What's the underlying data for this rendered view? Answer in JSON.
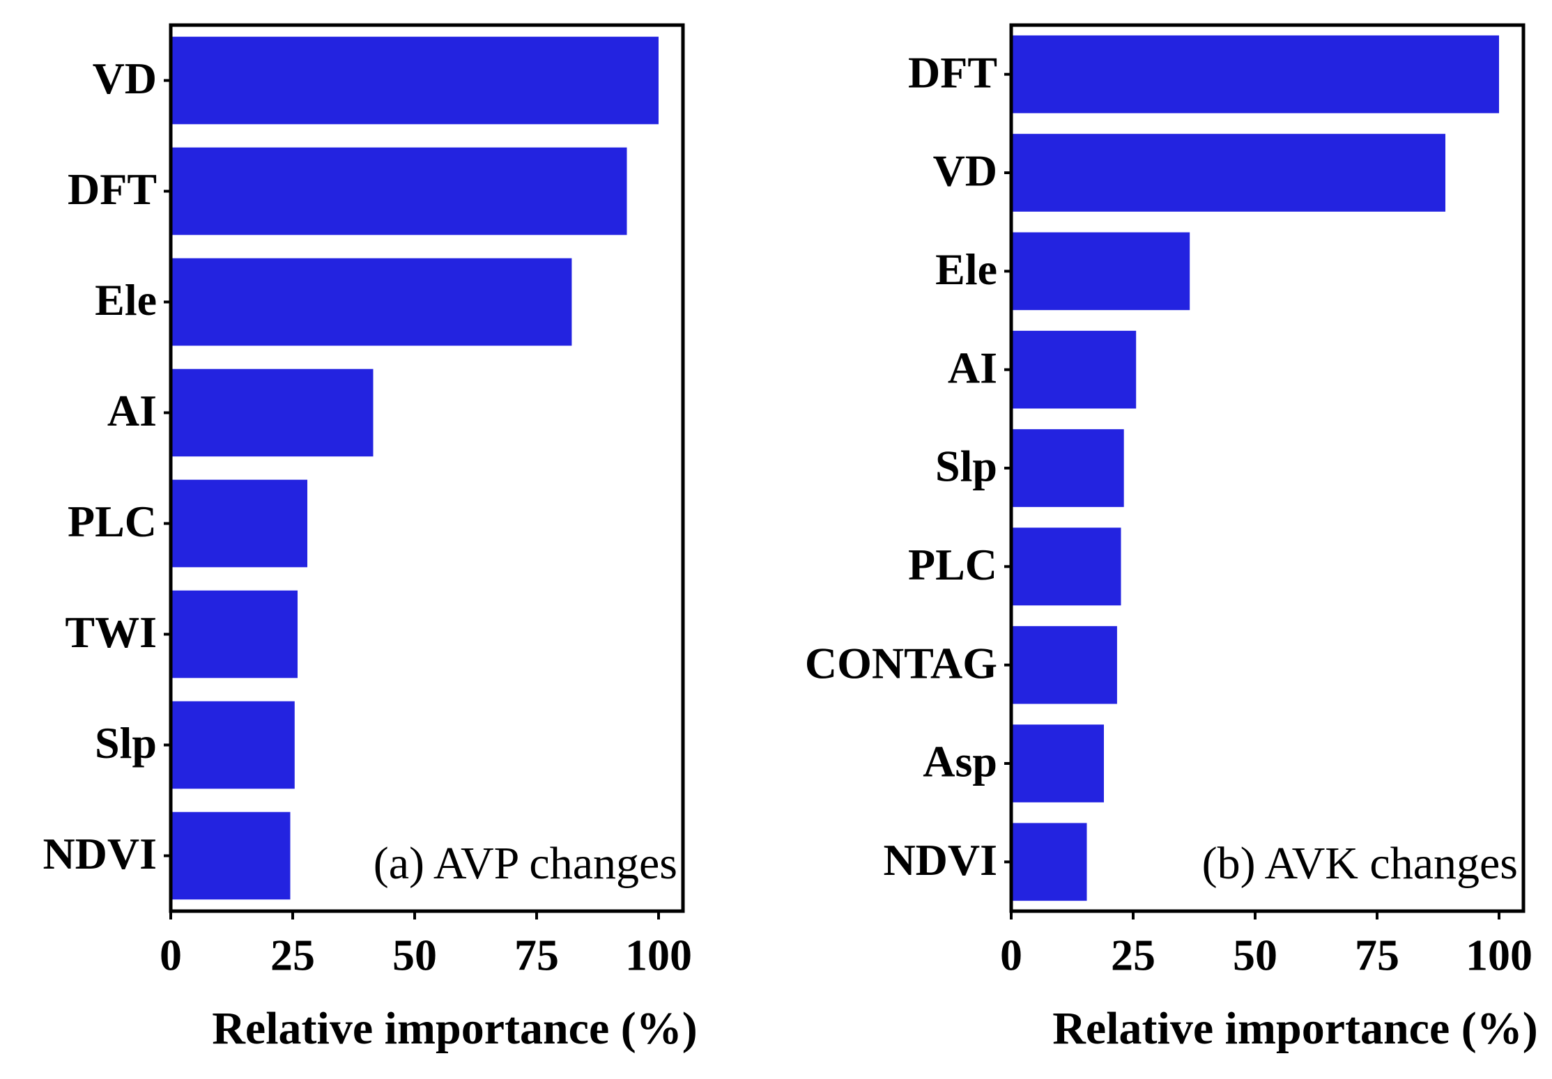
{
  "chart_data": [
    {
      "type": "barh",
      "annotation": "(a) AVP changes",
      "xlabel": "Relative importance (%)",
      "categories": [
        "VD",
        "DFT",
        "Ele",
        "AI",
        "PLC",
        "TWI",
        "Slp",
        "NDVI"
      ],
      "values": [
        100,
        93.5,
        82.2,
        41.5,
        28,
        26,
        25.4,
        24.5
      ],
      "color": "#2323e0",
      "xlim": [
        0,
        105
      ],
      "xticks": [
        0,
        25,
        50,
        75,
        100
      ]
    },
    {
      "type": "barh",
      "annotation": "(b) AVK changes",
      "xlabel": "Relative importance (%)",
      "categories": [
        "DFT",
        "VD",
        "Ele",
        "AI",
        "Slp",
        "PLC",
        "CONTAG",
        "Asp",
        "NDVI"
      ],
      "values": [
        100,
        89,
        36.6,
        25.6,
        23.1,
        22.5,
        21.7,
        19,
        15.5
      ],
      "color": "#2323e0",
      "xlim": [
        0,
        105
      ],
      "xticks": [
        0,
        25,
        50,
        75,
        100
      ]
    }
  ]
}
